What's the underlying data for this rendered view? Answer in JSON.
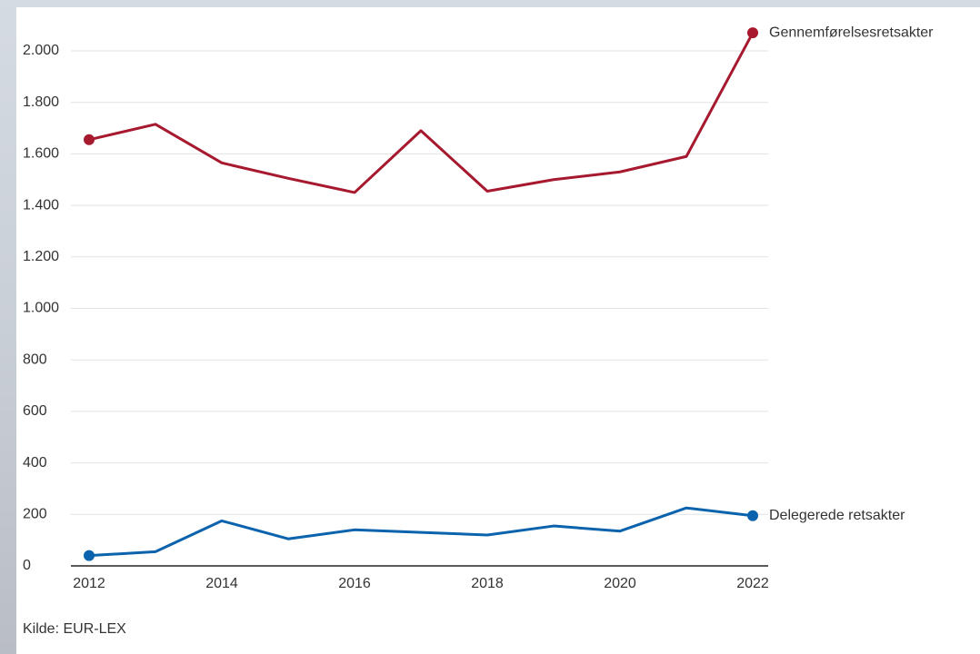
{
  "chart_data": {
    "type": "line",
    "x": [
      2012,
      2013,
      2014,
      2015,
      2016,
      2017,
      2018,
      2019,
      2020,
      2021,
      2022
    ],
    "series": [
      {
        "name": "Gennemførelsesretsakter",
        "color": "#a6192e",
        "values": [
          1655,
          1715,
          1565,
          1505,
          1450,
          1690,
          1455,
          1500,
          1530,
          1590,
          2070
        ]
      },
      {
        "name": "Delegerede retsakter",
        "color": "#0b63ad",
        "values": [
          40,
          55,
          175,
          105,
          140,
          130,
          120,
          155,
          135,
          225,
          195
        ]
      }
    ],
    "xlim": [
      2012,
      2022
    ],
    "xticks": [
      2012,
      2014,
      2016,
      2018,
      2020,
      2022
    ],
    "ylim": [
      0,
      2000
    ],
    "yticks": [
      0,
      200,
      400,
      600,
      800,
      {
        "value": 1000,
        "label": "1.000"
      },
      {
        "value": 1200,
        "label": "1.200"
      },
      {
        "value": 1400,
        "label": "1.400"
      },
      {
        "value": 1600,
        "label": "1.600"
      },
      {
        "value": 1800,
        "label": "1.800"
      },
      {
        "value": 2000,
        "label": "2.000"
      }
    ],
    "grid": true,
    "source": "Kilde: EUR-LEX"
  }
}
